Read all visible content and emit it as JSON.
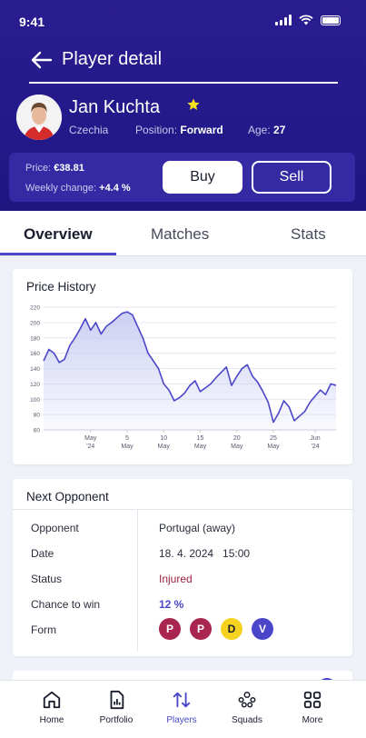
{
  "status_bar": {
    "time": "9:41"
  },
  "header": {
    "title": "Player detail"
  },
  "player": {
    "name": "Jan Kuchta",
    "favorite": true,
    "country": "Czechia",
    "position_label": "Position:",
    "position": "Forward",
    "age_label": "Age:",
    "age": "27"
  },
  "price_card": {
    "price_label": "Price:",
    "price": "€38.81",
    "weekly_label": "Weekly change:",
    "weekly_change": "+4.4 %",
    "buy_label": "Buy",
    "sell_label": "Sell"
  },
  "tabs": [
    {
      "label": "Overview",
      "active": true
    },
    {
      "label": "Matches",
      "active": false
    },
    {
      "label": "Stats",
      "active": false
    }
  ],
  "price_history": {
    "title": "Price History",
    "chart_data": {
      "type": "area",
      "ylim": [
        60,
        220
      ],
      "yticks": [
        60,
        80,
        100,
        120,
        140,
        160,
        180,
        200,
        220
      ],
      "xticks": [
        {
          "index": 9,
          "line1": "May",
          "line2": "'24"
        },
        {
          "index": 16,
          "line1": "5",
          "line2": "May"
        },
        {
          "index": 23,
          "line1": "10",
          "line2": "May"
        },
        {
          "index": 30,
          "line1": "15",
          "line2": "May"
        },
        {
          "index": 37,
          "line1": "20",
          "line2": "May"
        },
        {
          "index": 44,
          "line1": "25",
          "line2": "May"
        },
        {
          "index": 52,
          "line1": "Jun",
          "line2": "'24"
        }
      ],
      "values": [
        150,
        165,
        160,
        148,
        152,
        170,
        180,
        192,
        205,
        190,
        200,
        185,
        195,
        200,
        206,
        212,
        214,
        210,
        195,
        180,
        160,
        150,
        140,
        120,
        112,
        98,
        102,
        108,
        118,
        124,
        110,
        115,
        120,
        128,
        135,
        142,
        118,
        130,
        140,
        145,
        130,
        122,
        110,
        96,
        70,
        82,
        98,
        90,
        72,
        78,
        84,
        96,
        104,
        112,
        106,
        120,
        118
      ],
      "grid": true,
      "line_color": "#4b46c9",
      "fill_color": "#c9cdf2"
    }
  },
  "next_opponent": {
    "title": "Next Opponent",
    "rows": [
      {
        "label": "Opponent",
        "value": "Portugal (away)"
      },
      {
        "label": "Date",
        "value": "18. 4. 2024   15:00"
      },
      {
        "label": "Status",
        "value": "Injured"
      },
      {
        "label": "Chance to win",
        "value": "12 %"
      },
      {
        "label": "Form",
        "value": ""
      }
    ],
    "form": [
      {
        "result": "P",
        "color": "#a8264f"
      },
      {
        "result": "P",
        "color": "#a8264f"
      },
      {
        "result": "D",
        "color": "#f5d21f"
      },
      {
        "result": "V",
        "color": "#4b46c9"
      }
    ]
  },
  "bottom_nav": [
    {
      "label": "Home",
      "icon": "home-icon",
      "active": false
    },
    {
      "label": "Portfolio",
      "icon": "portfolio-icon",
      "active": false
    },
    {
      "label": "Players",
      "icon": "players-transfer-icon",
      "active": true
    },
    {
      "label": "Squads",
      "icon": "squads-icon",
      "active": false
    },
    {
      "label": "More",
      "icon": "more-grid-icon",
      "active": false
    }
  ],
  "colors": {
    "accent": "#4b46c9",
    "header_bg": "#2a1d8f",
    "card_bg": "#352aa3"
  }
}
